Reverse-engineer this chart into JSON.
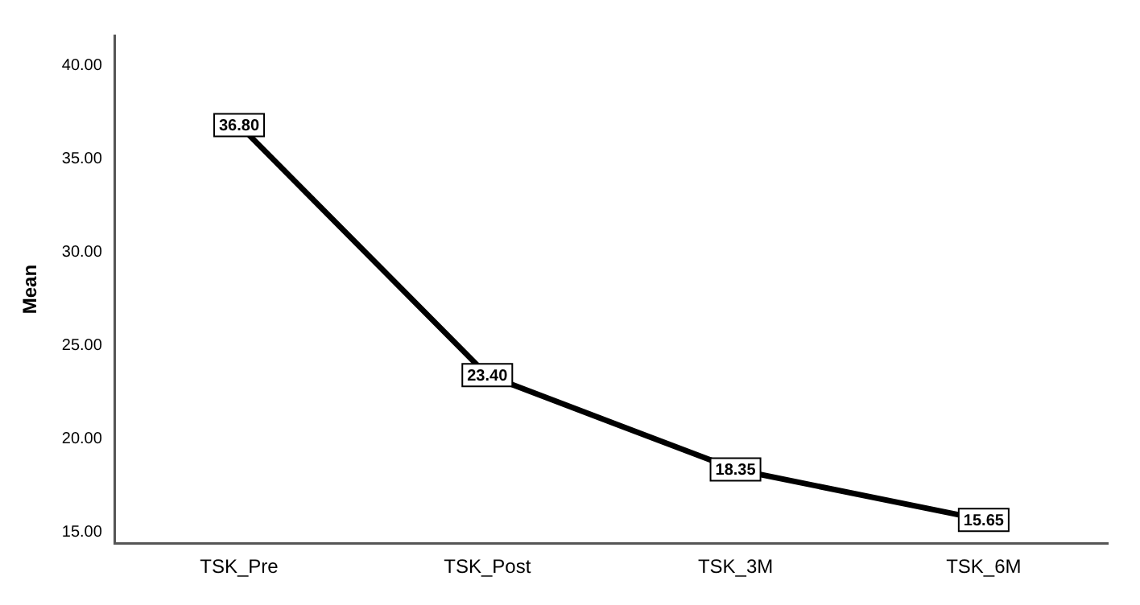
{
  "chart_data": {
    "type": "line",
    "ylabel": "Mean",
    "categories": [
      "TSK_Pre",
      "TSK_Post",
      "TSK_3M",
      "TSK_6M"
    ],
    "series": [
      {
        "color": "#000000",
        "values": [
          36.8,
          23.4,
          18.35,
          15.65
        ],
        "value_labels": [
          "36.80",
          "23.40",
          "18.35",
          "15.65"
        ]
      }
    ],
    "ylim": [
      14.4,
      41.6
    ],
    "yticks": [
      {
        "value": 15,
        "label": "15.00"
      },
      {
        "value": 20,
        "label": "20.00"
      },
      {
        "value": 25,
        "label": "25.00"
      },
      {
        "value": 30,
        "label": "30.00"
      },
      {
        "value": 35,
        "label": "35.00"
      },
      {
        "value": 40,
        "label": "40.00"
      }
    ],
    "grid": false,
    "legend": false,
    "marker": "square",
    "line_style": "solid"
  }
}
